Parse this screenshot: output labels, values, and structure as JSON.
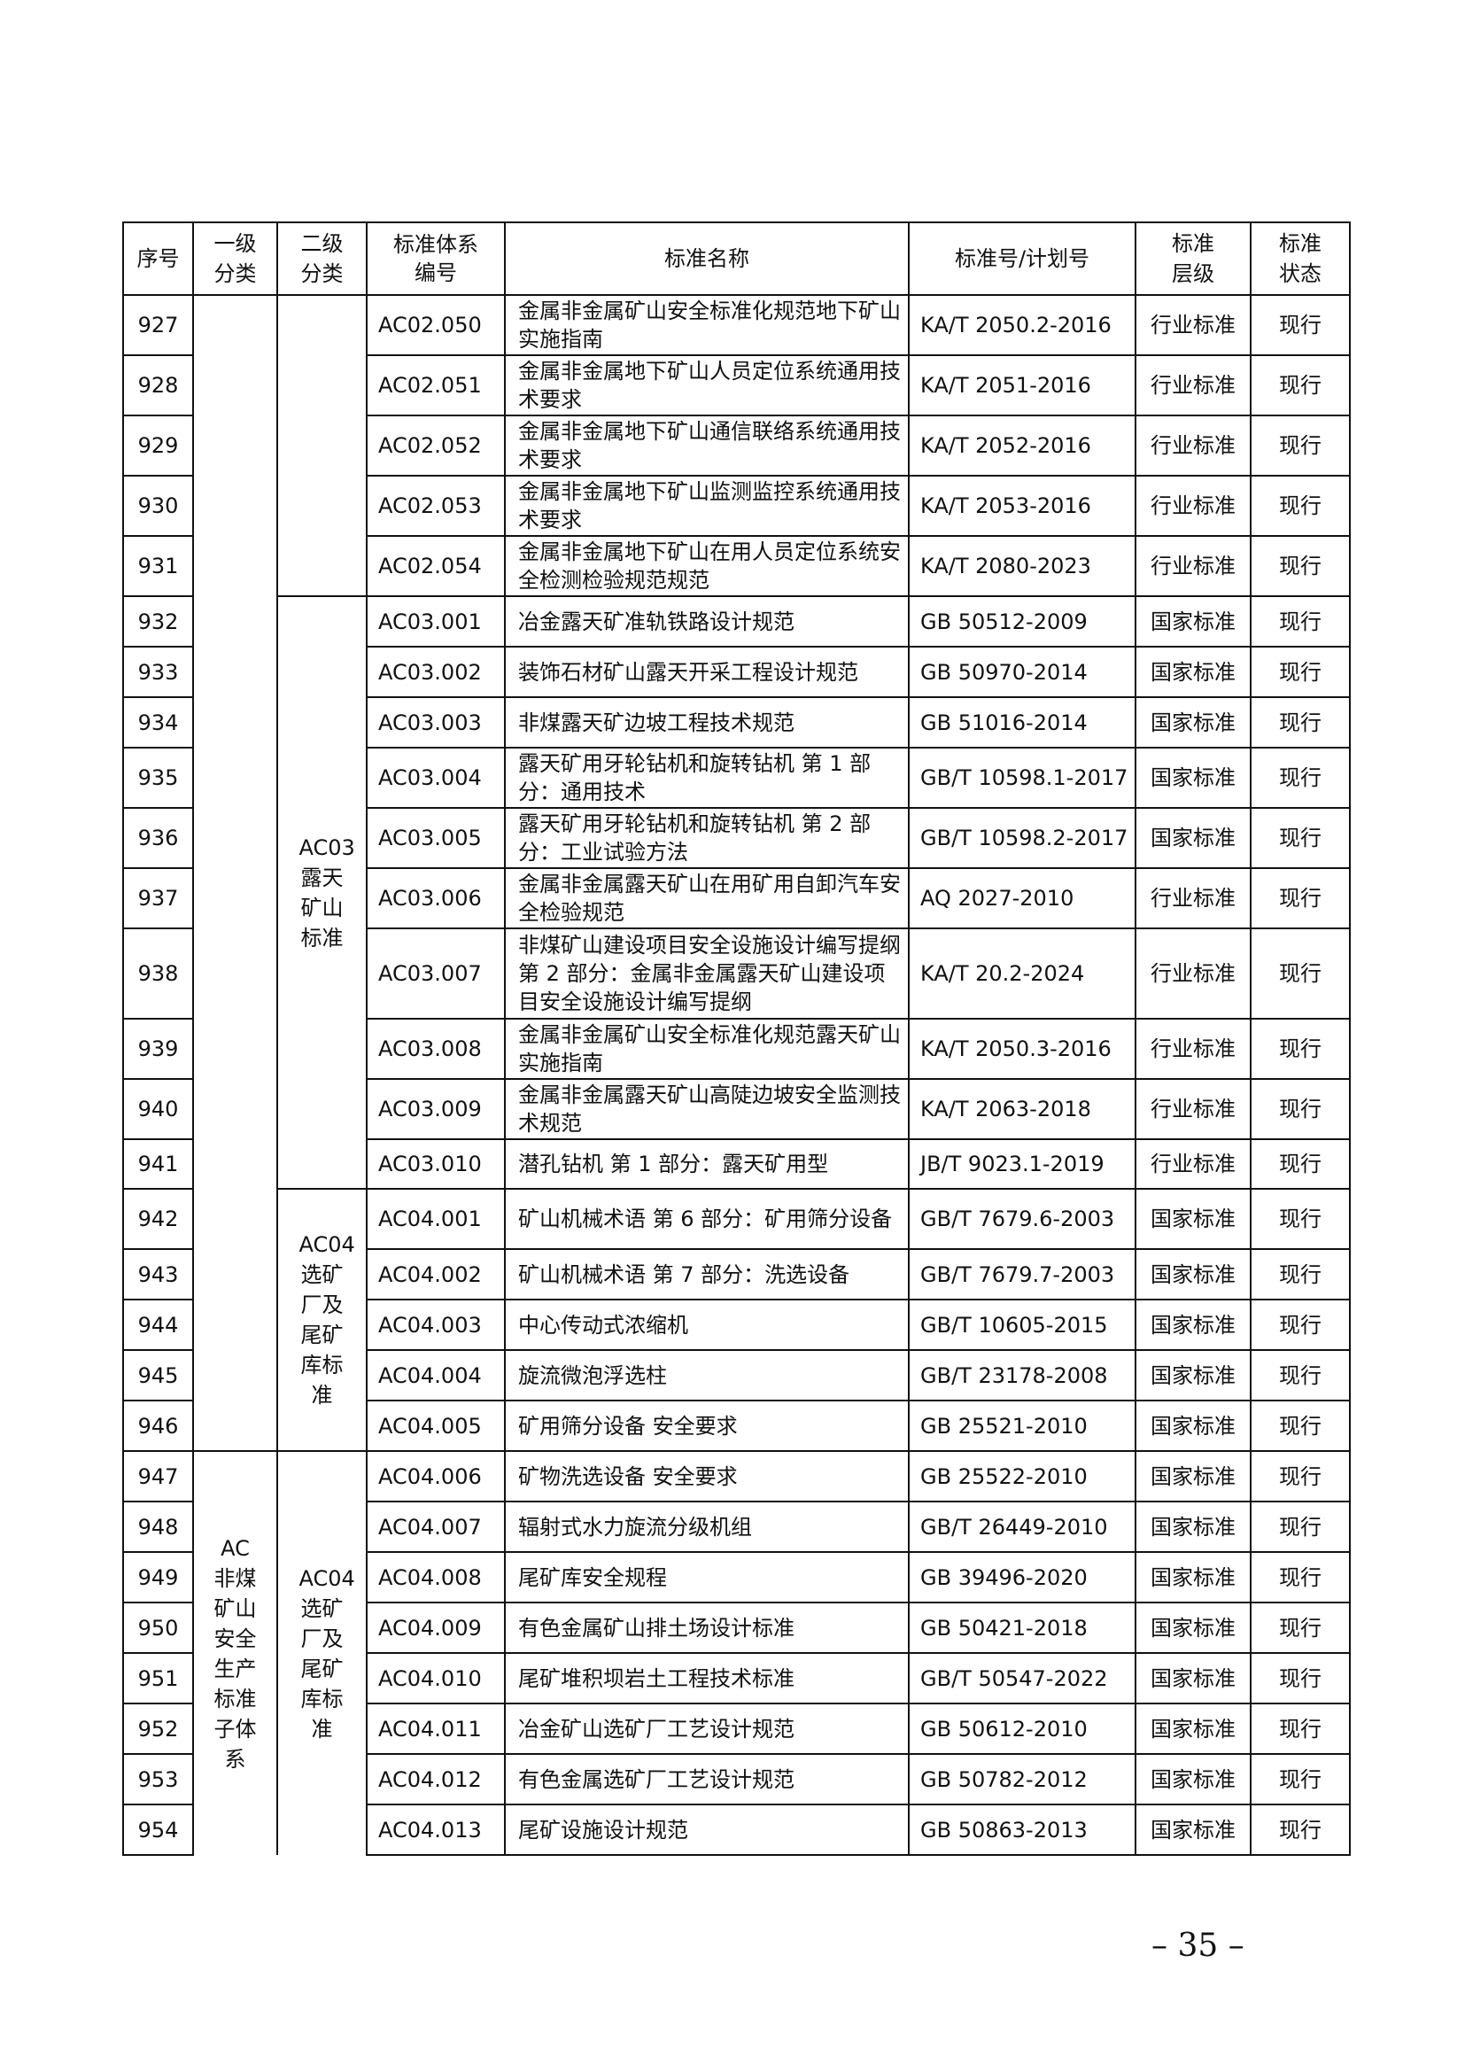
{
  "header": [
    "序号",
    "一级分类",
    "二级分类",
    "标准体系编号",
    "标准名称",
    "标准号/计划号",
    "标准层级",
    "标准状态"
  ],
  "groups": {
    "level1_ac": "AC非煤矿山安全生产标准子体系",
    "level2_ac03": "AC03露天矿山标准",
    "level2_ac04_a": "AC04选矿厂及尾矿库标准",
    "level2_ac04_b": "AC04选矿厂及尾矿库标准"
  },
  "rows": [
    {
      "no": "927",
      "code": "AC02.050",
      "name": "金属非金属矿山安全标准化规范地下矿山实施指南",
      "std": "KA/T 2050.2-2016",
      "level": "行业标准",
      "status": "现行"
    },
    {
      "no": "928",
      "code": "AC02.051",
      "name": "金属非金属地下矿山人员定位系统通用技术要求",
      "std": "KA/T 2051-2016",
      "level": "行业标准",
      "status": "现行"
    },
    {
      "no": "929",
      "code": "AC02.052",
      "name": "金属非金属地下矿山通信联络系统通用技术要求",
      "std": "KA/T 2052-2016",
      "level": "行业标准",
      "status": "现行"
    },
    {
      "no": "930",
      "code": "AC02.053",
      "name": "金属非金属地下矿山监测监控系统通用技术要求",
      "std": "KA/T 2053-2016",
      "level": "行业标准",
      "status": "现行"
    },
    {
      "no": "931",
      "code": "AC02.054",
      "name": "金属非金属地下矿山在用人员定位系统安全检测检验规范规范",
      "std": "KA/T 2080-2023",
      "level": "行业标准",
      "status": "现行"
    },
    {
      "no": "932",
      "code": "AC03.001",
      "name": "冶金露天矿准轨铁路设计规范",
      "std": "GB 50512-2009",
      "level": "国家标准",
      "status": "现行"
    },
    {
      "no": "933",
      "code": "AC03.002",
      "name": "装饰石材矿山露天开采工程设计规范",
      "std": "GB 50970-2014",
      "level": "国家标准",
      "status": "现行"
    },
    {
      "no": "934",
      "code": "AC03.003",
      "name": "非煤露天矿边坡工程技术规范",
      "std": "GB 51016-2014",
      "level": "国家标准",
      "status": "现行"
    },
    {
      "no": "935",
      "code": "AC03.004",
      "name": "露天矿用牙轮钻机和旋转钻机 第 1 部分：通用技术",
      "std": "GB/T 10598.1-2017",
      "level": "国家标准",
      "status": "现行"
    },
    {
      "no": "936",
      "code": "AC03.005",
      "name": "露天矿用牙轮钻机和旋转钻机 第 2 部分：工业试验方法",
      "std": "GB/T 10598.2-2017",
      "level": "国家标准",
      "status": "现行"
    },
    {
      "no": "937",
      "code": "AC03.006",
      "name": "金属非金属露天矿山在用矿用自卸汽车安全检验规范",
      "std": "AQ 2027-2010",
      "level": "行业标准",
      "status": "现行"
    },
    {
      "no": "938",
      "code": "AC03.007",
      "name": "非煤矿山建设项目安全设施设计编写提纲 第 2 部分：金属非金属露天矿山建设项目安全设施设计编写提纲",
      "std": "KA/T 20.2-2024",
      "level": "行业标准",
      "status": "现行"
    },
    {
      "no": "939",
      "code": "AC03.008",
      "name": "金属非金属矿山安全标准化规范露天矿山实施指南",
      "std": "KA/T 2050.3-2016",
      "level": "行业标准",
      "status": "现行"
    },
    {
      "no": "940",
      "code": "AC03.009",
      "name": "金属非金属露天矿山高陡边坡安全监测技术规范",
      "std": "KA/T 2063-2018",
      "level": "行业标准",
      "status": "现行"
    },
    {
      "no": "941",
      "code": "AC03.010",
      "name": "潜孔钻机 第 1 部分：露天矿用型",
      "std": "JB/T 9023.1-2019",
      "level": "行业标准",
      "status": "现行"
    },
    {
      "no": "942",
      "code": "AC04.001",
      "name": "矿山机械术语 第 6 部分：矿用筛分设备",
      "std": "GB/T 7679.6-2003",
      "level": "国家标准",
      "status": "现行"
    },
    {
      "no": "943",
      "code": "AC04.002",
      "name": "矿山机械术语 第 7 部分：洗选设备",
      "std": "GB/T 7679.7-2003",
      "level": "国家标准",
      "status": "现行"
    },
    {
      "no": "944",
      "code": "AC04.003",
      "name": "中心传动式浓缩机",
      "std": "GB/T 10605-2015",
      "level": "国家标准",
      "status": "现行"
    },
    {
      "no": "945",
      "code": "AC04.004",
      "name": "旋流微泡浮选柱",
      "std": "GB/T 23178-2008",
      "level": "国家标准",
      "status": "现行"
    },
    {
      "no": "946",
      "code": "AC04.005",
      "name": "矿用筛分设备 安全要求",
      "std": "GB 25521-2010",
      "level": "国家标准",
      "status": "现行"
    },
    {
      "no": "947",
      "code": "AC04.006",
      "name": "矿物洗选设备 安全要求",
      "std": "GB 25522-2010",
      "level": "国家标准",
      "status": "现行"
    },
    {
      "no": "948",
      "code": "AC04.007",
      "name": "辐射式水力旋流分级机组",
      "std": "GB/T 26449-2010",
      "level": "国家标准",
      "status": "现行"
    },
    {
      "no": "949",
      "code": "AC04.008",
      "name": "尾矿库安全规程",
      "std": "GB 39496-2020",
      "level": "国家标准",
      "status": "现行"
    },
    {
      "no": "950",
      "code": "AC04.009",
      "name": "有色金属矿山排土场设计标准",
      "std": "GB 50421-2018",
      "level": "国家标准",
      "status": "现行"
    },
    {
      "no": "951",
      "code": "AC04.010",
      "name": "尾矿堆积坝岩土工程技术标准",
      "std": "GB/T 50547-2022",
      "level": "国家标准",
      "status": "现行"
    },
    {
      "no": "952",
      "code": "AC04.011",
      "name": "冶金矿山选矿厂工艺设计规范",
      "std": "GB 50612-2010",
      "level": "国家标准",
      "status": "现行"
    },
    {
      "no": "953",
      "code": "AC04.012",
      "name": "有色金属选矿厂工艺设计规范",
      "std": "GB 50782-2012",
      "level": "国家标准",
      "status": "现行"
    },
    {
      "no": "954",
      "code": "AC04.013",
      "name": "尾矿设施设计规范",
      "std": "GB 50863-2013",
      "level": "国家标准",
      "status": "现行"
    }
  ],
  "page_number": "– 35 –"
}
